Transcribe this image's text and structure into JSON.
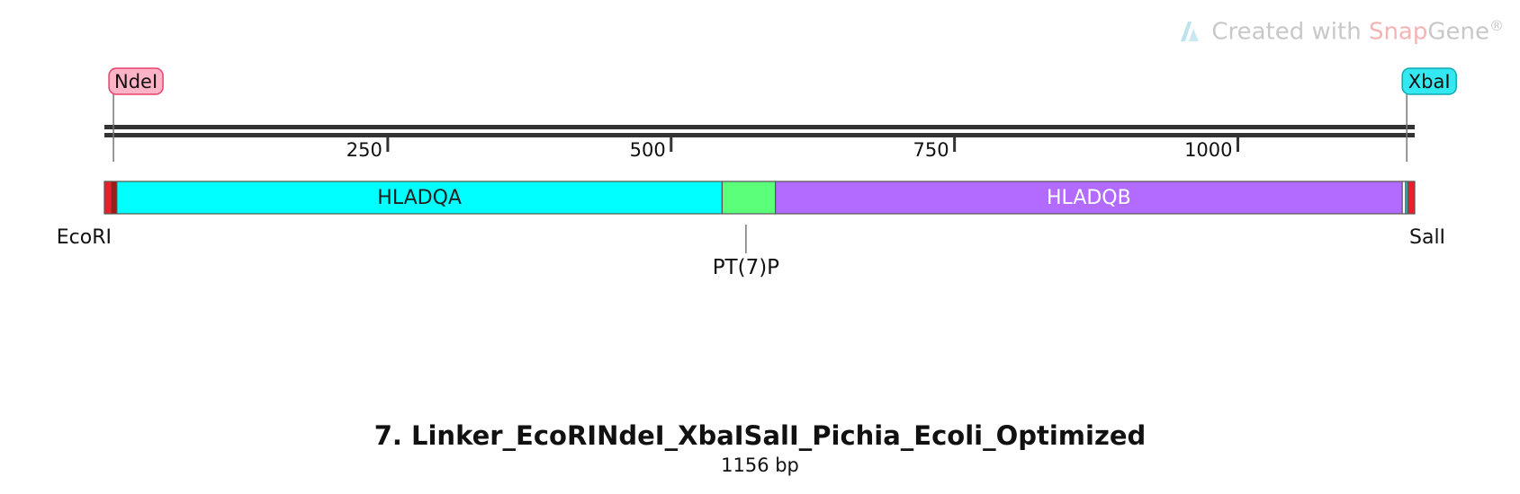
{
  "watermark": {
    "prefix": "Created with",
    "brand_a": "Snap",
    "brand_b": "Gene",
    "reg": "®"
  },
  "sequence": {
    "name": "7. Linker_EcoRINdeI_XbaISalI_Pichia_Ecoli_Optimized",
    "length_label": "1156 bp",
    "length": 1156
  },
  "ticks": [
    {
      "pos": 250,
      "label": "250"
    },
    {
      "pos": 500,
      "label": "500"
    },
    {
      "pos": 750,
      "label": "750"
    },
    {
      "pos": 1000,
      "label": "1000"
    }
  ],
  "enzymes_top": [
    {
      "name": "NdeI",
      "pos": 8,
      "fill": "#ffb3c6",
      "stroke": "#e8406a"
    },
    {
      "name": "XbaI",
      "pos": 1149,
      "fill": "#33e8f0",
      "stroke": "#10a8b0"
    }
  ],
  "enzymes_bottom": [
    {
      "name": "EcoRI",
      "pos": 0,
      "align": "left"
    },
    {
      "name": "SalI",
      "pos": 1156,
      "align": "right"
    }
  ],
  "features": [
    {
      "name": "",
      "start": 0,
      "end": 6,
      "color": "#e8202a"
    },
    {
      "name": "",
      "start": 6,
      "end": 11,
      "color": "#9b1c1c"
    },
    {
      "name": "HLADQA",
      "start": 11,
      "end": 545,
      "color": "#00ffff",
      "text_color": "#222222"
    },
    {
      "name": "",
      "start": 545,
      "end": 592,
      "color": "#5cff7a"
    },
    {
      "name": "HLADQB",
      "start": 592,
      "end": 1145,
      "color": "#b36bff",
      "text_color": "#ffffff"
    },
    {
      "name": "",
      "start": 1145,
      "end": 1148,
      "color": "#ffffff"
    },
    {
      "name": "",
      "start": 1148,
      "end": 1150,
      "color": "#00e0e0"
    },
    {
      "name": "",
      "start": 1150,
      "end": 1156,
      "color": "#e8202a"
    }
  ],
  "annotations": [
    {
      "name": "PT(7)P",
      "pos": 566
    }
  ]
}
